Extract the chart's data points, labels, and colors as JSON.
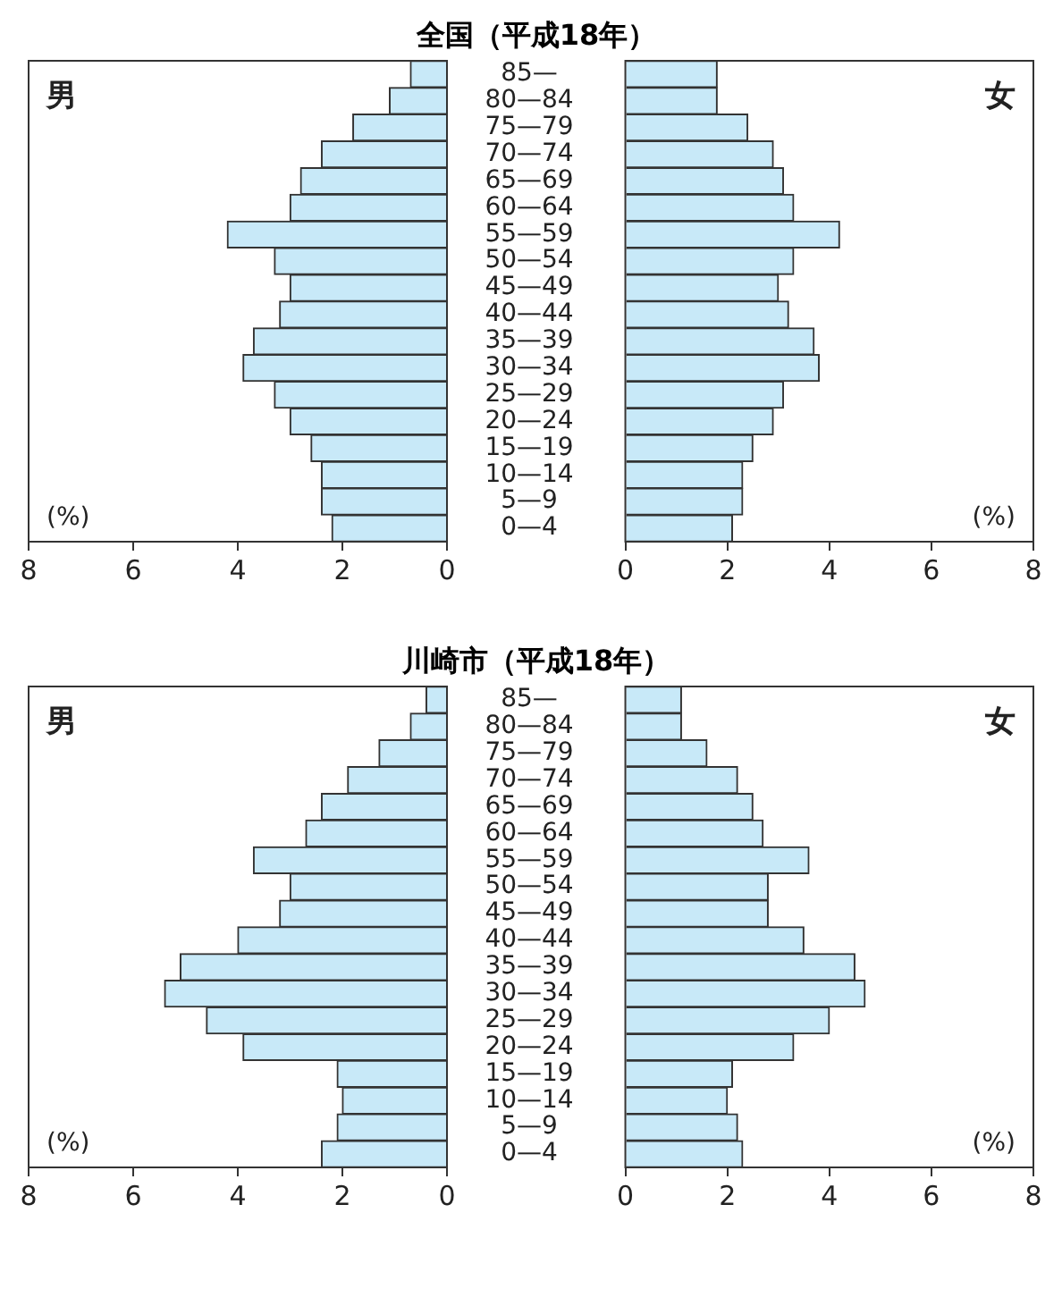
{
  "chart_data": [
    {
      "type": "bar",
      "orientation": "horizontal",
      "title": "全国（平成18年）",
      "categories": [
        "85—",
        "80—84",
        "75—79",
        "70—74",
        "65—69",
        "60—64",
        "55—59",
        "50—54",
        "45—49",
        "40—44",
        "35—39",
        "30—34",
        "25—29",
        "20—24",
        "15—19",
        "10—14",
        "5—9",
        "0—4"
      ],
      "values": [
        0.7,
        1.1,
        1.8,
        2.4,
        2.8,
        3.0,
        4.2,
        3.3,
        3.0,
        3.2,
        3.7,
        3.9,
        3.3,
        3.0,
        2.6,
        2.4,
        2.4,
        2.2
      ],
      "color": "#c8e9f8",
      "xlim": [
        8,
        0
      ],
      "xticks": [
        8,
        6,
        4,
        2,
        0
      ],
      "annotations": [
        "男",
        "(%)"
      ]
    },
    {
      "type": "bar",
      "orientation": "horizontal",
      "categories": [
        "85—",
        "80—84",
        "75—79",
        "70—74",
        "65—69",
        "60—64",
        "55—59",
        "50—54",
        "45—49",
        "40—44",
        "35—39",
        "30—34",
        "25—29",
        "20—24",
        "15—19",
        "10—14",
        "5—9",
        "0—4"
      ],
      "values": [
        1.8,
        1.8,
        2.4,
        2.9,
        3.1,
        3.3,
        4.2,
        3.3,
        3.0,
        3.2,
        3.7,
        3.8,
        3.1,
        2.9,
        2.5,
        2.3,
        2.3,
        2.1
      ],
      "color": "#c8e9f8",
      "xlim": [
        0,
        8
      ],
      "xticks": [
        0,
        2,
        4,
        6,
        8
      ],
      "tick_labels": "x",
      "annotations": [
        "女",
        "(%)"
      ]
    },
    {
      "type": "bar",
      "orientation": "horizontal",
      "title": "川崎市（平成18年）",
      "categories": [
        "85—",
        "80—84",
        "75—79",
        "70—74",
        "65—69",
        "60—64",
        "55—59",
        "50—54",
        "45—49",
        "40—44",
        "35—39",
        "30—34",
        "25—29",
        "20—24",
        "15—19",
        "10—14",
        "5—9",
        "0—4"
      ],
      "values": [
        0.4,
        0.7,
        1.3,
        1.9,
        2.4,
        2.7,
        3.7,
        3.0,
        3.2,
        4.0,
        5.1,
        5.4,
        4.6,
        3.9,
        2.1,
        2.0,
        2.1,
        2.4
      ],
      "color": "#c8e9f8",
      "xlim": [
        8,
        0
      ],
      "xticks": [
        8,
        6,
        4,
        2,
        0
      ],
      "annotations": [
        "男",
        "(%)"
      ]
    },
    {
      "type": "bar",
      "orientation": "horizontal",
      "categories": [
        "85—",
        "80—84",
        "75—79",
        "70—74",
        "65—69",
        "60—64",
        "55—59",
        "50—54",
        "45—49",
        "40—44",
        "35—39",
        "30—34",
        "25—29",
        "20—24",
        "15—19",
        "10—14",
        "5—9",
        "0—4"
      ],
      "values": [
        1.1,
        1.1,
        1.6,
        2.2,
        2.5,
        2.7,
        3.6,
        2.8,
        2.8,
        3.5,
        4.5,
        4.7,
        4.0,
        3.3,
        2.1,
        2.0,
        2.2,
        2.3
      ],
      "color": "#c8e9f8",
      "xlim": [
        0,
        8
      ],
      "xticks": [
        0,
        2,
        4,
        6,
        8
      ],
      "tick_labels": "x",
      "annotations": [
        "女",
        "(%)"
      ]
    }
  ]
}
